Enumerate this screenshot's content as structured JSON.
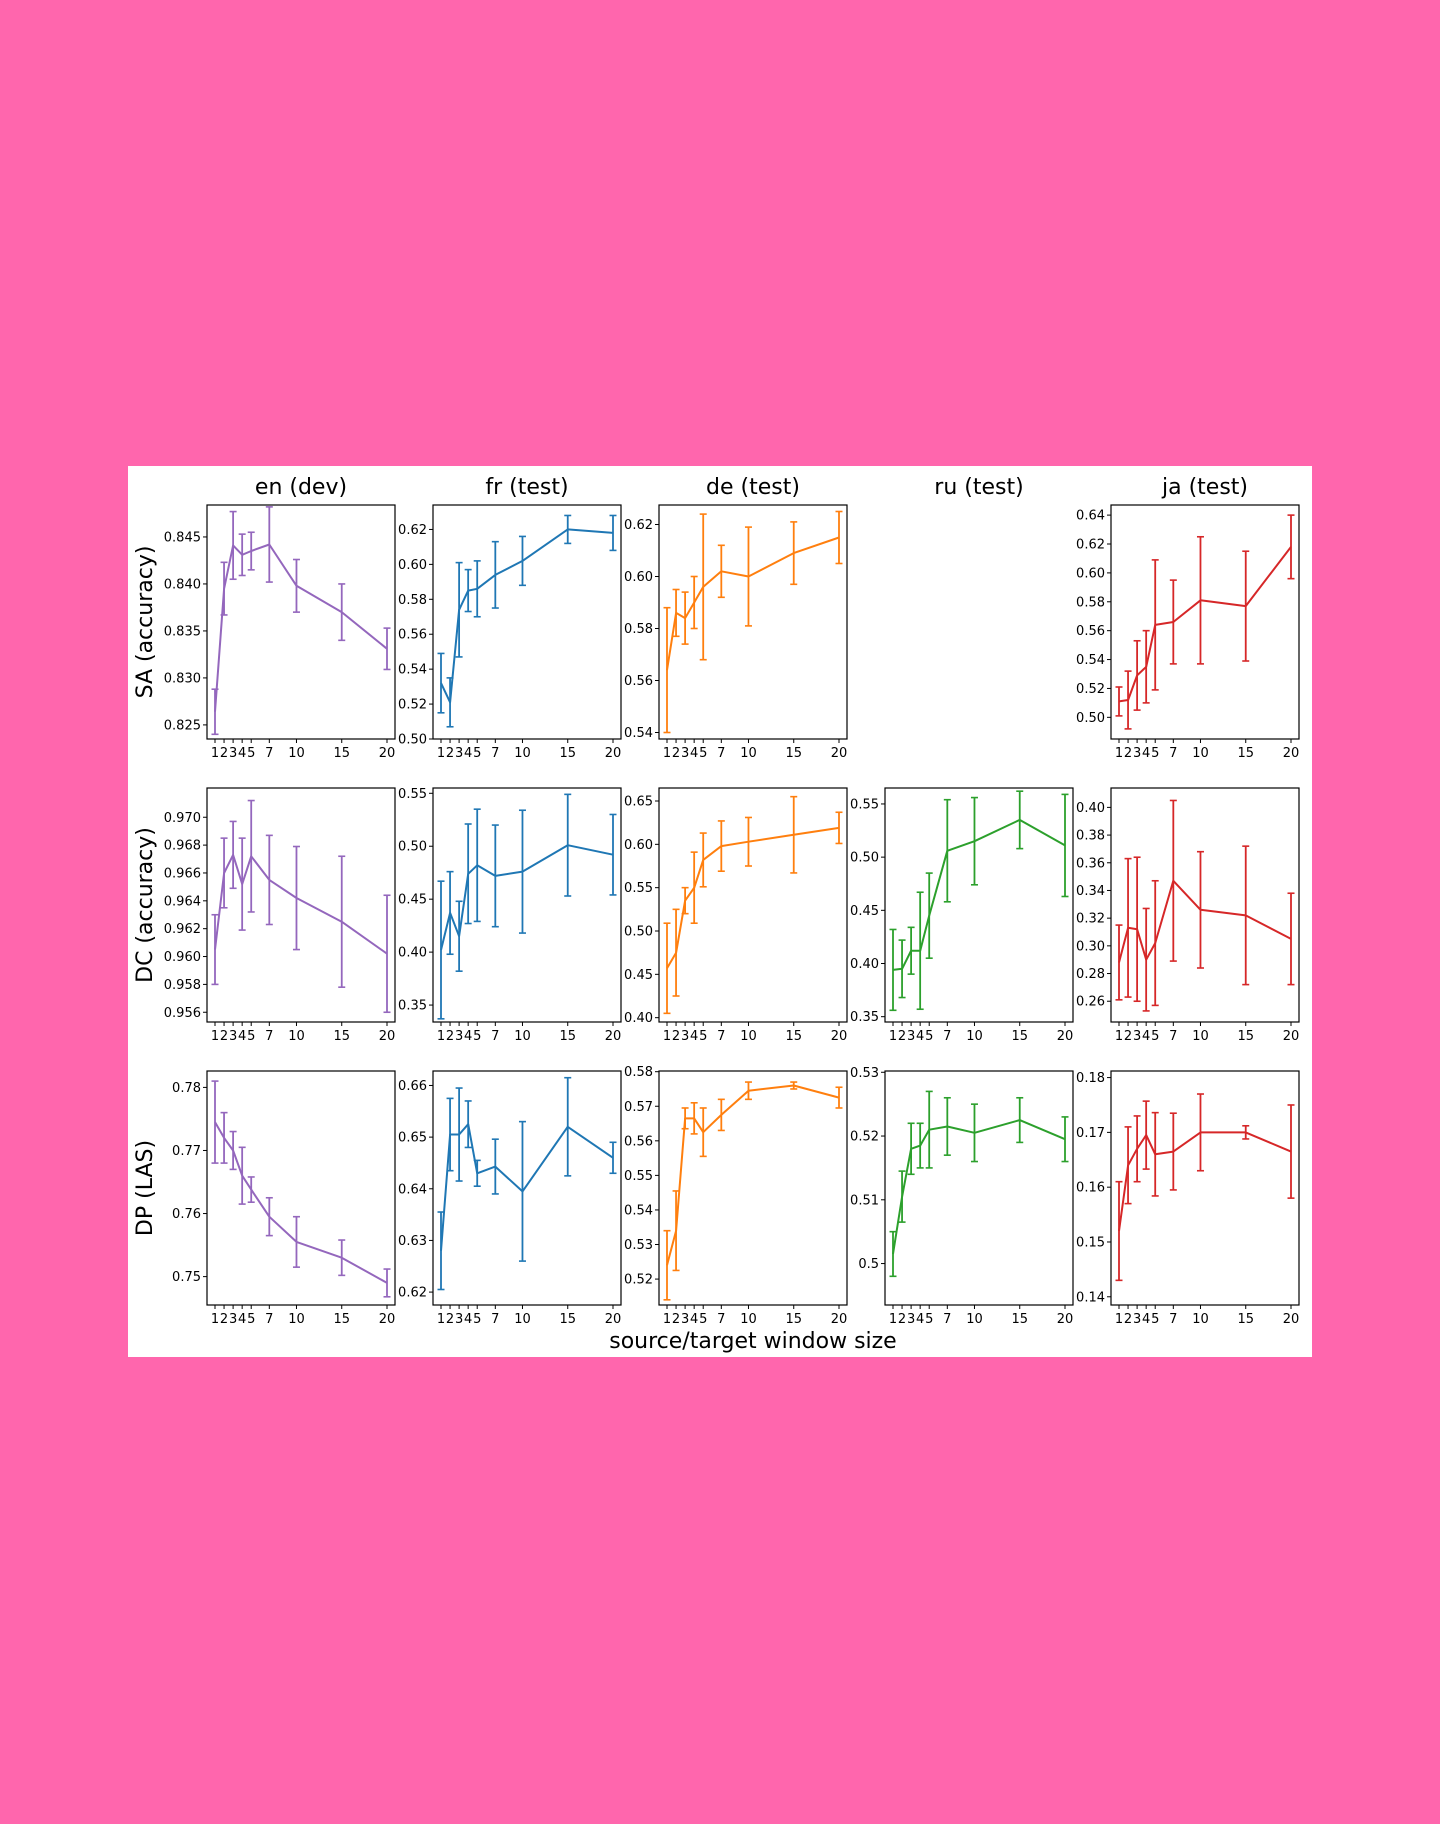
{
  "chart_data": {
    "type": "line",
    "xlabel": "source/target window size",
    "x": [
      1,
      2,
      3,
      4,
      5,
      7,
      10,
      15,
      20
    ],
    "xtick_labels": [
      "1",
      "2",
      "3",
      "4",
      "5",
      "7",
      "10",
      "15",
      "20"
    ],
    "columns": [
      {
        "title": "en (dev)",
        "color": "#9467bd"
      },
      {
        "title": "fr (test)",
        "color": "#1f77b4"
      },
      {
        "title": "de (test)",
        "color": "#ff7f0e"
      },
      {
        "title": "ru (test)",
        "color": "#2ca02c"
      },
      {
        "title": "ja (test)",
        "color": "#d62728"
      }
    ],
    "rows": [
      {
        "ylabel": "SA (accuracy)"
      },
      {
        "ylabel": "DC (accuracy)"
      },
      {
        "ylabel": "DP (LAS)"
      }
    ],
    "panels": [
      {
        "row": 0,
        "col": 0,
        "ylim": [
          0.8235,
          0.8484
        ],
        "yticks": [
          0.825,
          0.83,
          0.835,
          0.84,
          0.845
        ],
        "ytick_labels": [
          "0.825",
          "0.830",
          "0.835",
          "0.840",
          "0.845"
        ],
        "y": [
          0.8264,
          0.8395,
          0.8441,
          0.8431,
          0.8435,
          0.8442,
          0.8398,
          0.837,
          0.8331
        ],
        "err": [
          0.0024,
          0.0028,
          0.0036,
          0.0022,
          0.002,
          0.004,
          0.0028,
          0.003,
          0.0022
        ]
      },
      {
        "row": 0,
        "col": 1,
        "ylim": [
          0.5,
          0.634
        ],
        "yticks": [
          0.5,
          0.52,
          0.54,
          0.56,
          0.58,
          0.6,
          0.62
        ],
        "ytick_labels": [
          "0.50",
          "0.52",
          "0.54",
          "0.56",
          "0.58",
          "0.60",
          "0.62"
        ],
        "y": [
          0.532,
          0.521,
          0.574,
          0.585,
          0.586,
          0.594,
          0.602,
          0.62,
          0.618
        ],
        "err": [
          0.017,
          0.014,
          0.027,
          0.012,
          0.016,
          0.019,
          0.014,
          0.008,
          0.01
        ]
      },
      {
        "row": 0,
        "col": 2,
        "ylim": [
          0.5375,
          0.6275
        ],
        "yticks": [
          0.54,
          0.56,
          0.58,
          0.6,
          0.62
        ],
        "ytick_labels": [
          "0.54",
          "0.56",
          "0.58",
          "0.60",
          "0.62"
        ],
        "y": [
          0.564,
          0.586,
          0.584,
          0.59,
          0.596,
          0.602,
          0.6,
          0.609,
          0.615
        ],
        "err": [
          0.024,
          0.009,
          0.01,
          0.01,
          0.028,
          0.01,
          0.019,
          0.012,
          0.01
        ]
      },
      {
        "row": 0,
        "col": 3,
        "empty": true
      },
      {
        "row": 0,
        "col": 4,
        "ylim": [
          0.485,
          0.647
        ],
        "yticks": [
          0.5,
          0.52,
          0.54,
          0.56,
          0.58,
          0.6,
          0.62,
          0.64
        ],
        "ytick_labels": [
          "0.50",
          "0.52",
          "0.54",
          "0.56",
          "0.58",
          "0.60",
          "0.62",
          "0.64"
        ],
        "y": [
          0.511,
          0.512,
          0.529,
          0.535,
          0.564,
          0.566,
          0.581,
          0.577,
          0.618
        ],
        "err": [
          0.01,
          0.02,
          0.024,
          0.025,
          0.045,
          0.029,
          0.044,
          0.038,
          0.022
        ]
      },
      {
        "row": 1,
        "col": 0,
        "ylim": [
          0.9553,
          0.9721
        ],
        "yticks": [
          0.956,
          0.958,
          0.96,
          0.962,
          0.964,
          0.966,
          0.968,
          0.97
        ],
        "ytick_labels": [
          "0.956",
          "0.958",
          "0.960",
          "0.962",
          "0.964",
          "0.966",
          "0.968",
          "0.970"
        ],
        "y": [
          0.9605,
          0.966,
          0.9673,
          0.9652,
          0.9672,
          0.9655,
          0.9642,
          0.9625,
          0.9602
        ],
        "err": [
          0.0025,
          0.0025,
          0.0024,
          0.0033,
          0.004,
          0.0032,
          0.0037,
          0.0047,
          0.0042
        ]
      },
      {
        "row": 1,
        "col": 1,
        "ylim": [
          0.334,
          0.555
        ],
        "yticks": [
          0.35,
          0.4,
          0.45,
          0.5,
          0.55
        ],
        "ytick_labels": [
          "0.35",
          "0.40",
          "0.45",
          "0.50",
          "0.55"
        ],
        "y": [
          0.402,
          0.437,
          0.415,
          0.474,
          0.482,
          0.472,
          0.476,
          0.501,
          0.492
        ],
        "err": [
          0.065,
          0.039,
          0.033,
          0.047,
          0.053,
          0.048,
          0.058,
          0.048,
          0.038
        ]
      },
      {
        "row": 1,
        "col": 2,
        "ylim": [
          0.395,
          0.665
        ],
        "yticks": [
          0.4,
          0.45,
          0.5,
          0.55,
          0.6,
          0.65
        ],
        "ytick_labels": [
          "0.40",
          "0.45",
          "0.50",
          "0.55",
          "0.60",
          "0.65"
        ],
        "y": [
          0.457,
          0.475,
          0.535,
          0.55,
          0.582,
          0.598,
          0.603,
          0.611,
          0.619
        ],
        "err": [
          0.052,
          0.05,
          0.015,
          0.041,
          0.031,
          0.029,
          0.028,
          0.044,
          0.018
        ]
      },
      {
        "row": 1,
        "col": 3,
        "ylim": [
          0.345,
          0.565
        ],
        "yticks": [
          0.35,
          0.4,
          0.45,
          0.5,
          0.55
        ],
        "ytick_labels": [
          "0.35",
          "0.40",
          "0.45",
          "0.50",
          "0.55"
        ],
        "y": [
          0.394,
          0.395,
          0.412,
          0.412,
          0.445,
          0.506,
          0.515,
          0.535,
          0.511
        ],
        "err": [
          0.038,
          0.027,
          0.022,
          0.055,
          0.04,
          0.048,
          0.041,
          0.027,
          0.048
        ]
      },
      {
        "row": 1,
        "col": 4,
        "ylim": [
          0.245,
          0.414
        ],
        "yticks": [
          0.26,
          0.28,
          0.3,
          0.32,
          0.34,
          0.36,
          0.38,
          0.4
        ],
        "ytick_labels": [
          "0.26",
          "0.28",
          "0.30",
          "0.32",
          "0.34",
          "0.36",
          "0.38",
          "0.40"
        ],
        "y": [
          0.288,
          0.313,
          0.312,
          0.29,
          0.302,
          0.347,
          0.326,
          0.322,
          0.305
        ],
        "err": [
          0.027,
          0.05,
          0.052,
          0.037,
          0.045,
          0.058,
          0.042,
          0.05,
          0.033
        ]
      },
      {
        "row": 2,
        "col": 0,
        "ylim": [
          0.7455,
          0.7826
        ],
        "yticks": [
          0.75,
          0.76,
          0.77,
          0.78
        ],
        "ytick_labels": [
          "0.75",
          "0.76",
          "0.77",
          "0.78"
        ],
        "y": [
          0.7745,
          0.772,
          0.77,
          0.766,
          0.7638,
          0.7595,
          0.7555,
          0.753,
          0.749
        ],
        "err": [
          0.0065,
          0.004,
          0.003,
          0.0045,
          0.002,
          0.003,
          0.004,
          0.0028,
          0.0022
        ]
      },
      {
        "row": 2,
        "col": 1,
        "ylim": [
          0.6175,
          0.6628
        ],
        "yticks": [
          0.62,
          0.63,
          0.64,
          0.65,
          0.66
        ],
        "ytick_labels": [
          "0.62",
          "0.63",
          "0.64",
          "0.65",
          "0.66"
        ],
        "y": [
          0.628,
          0.6505,
          0.6505,
          0.6525,
          0.643,
          0.6443,
          0.6395,
          0.652,
          0.646
        ],
        "err": [
          0.0075,
          0.007,
          0.009,
          0.0045,
          0.0025,
          0.0053,
          0.0135,
          0.0095,
          0.003
        ]
      },
      {
        "row": 2,
        "col": 2,
        "ylim": [
          0.5125,
          0.5802
        ],
        "yticks": [
          0.52,
          0.53,
          0.54,
          0.55,
          0.56,
          0.57,
          0.58
        ],
        "ytick_labels": [
          "0.52",
          "0.53",
          "0.54",
          "0.55",
          "0.56",
          "0.57",
          "0.58"
        ],
        "y": [
          0.524,
          0.534,
          0.5665,
          0.5665,
          0.5625,
          0.5675,
          0.5745,
          0.576,
          0.5725
        ],
        "err": [
          0.01,
          0.0115,
          0.003,
          0.0045,
          0.007,
          0.0045,
          0.0025,
          0.001,
          0.003
        ]
      },
      {
        "row": 2,
        "col": 3,
        "ylim": [
          0.4935,
          0.5302
        ],
        "yticks": [
          0.5,
          0.51,
          0.52,
          0.53
        ],
        "ytick_labels": [
          "0.5",
          "0.51",
          "0.52",
          "0.53"
        ],
        "y": [
          0.5015,
          0.5105,
          0.518,
          0.5185,
          0.521,
          0.5215,
          0.5205,
          0.5225,
          0.5195
        ],
        "err": [
          0.0035,
          0.004,
          0.004,
          0.0035,
          0.006,
          0.0045,
          0.0045,
          0.0035,
          0.0035
        ]
      },
      {
        "row": 2,
        "col": 4,
        "ylim": [
          0.1385,
          0.1812
        ],
        "yticks": [
          0.14,
          0.15,
          0.16,
          0.17,
          0.18
        ],
        "ytick_labels": [
          "0.14",
          "0.15",
          "0.16",
          "0.17",
          "0.18"
        ],
        "y": [
          0.152,
          0.164,
          0.167,
          0.1695,
          0.166,
          0.1665,
          0.17,
          0.17,
          0.1665
        ],
        "err": [
          0.009,
          0.007,
          0.006,
          0.0062,
          0.0076,
          0.007,
          0.007,
          0.0012,
          0.0085
        ]
      }
    ]
  }
}
